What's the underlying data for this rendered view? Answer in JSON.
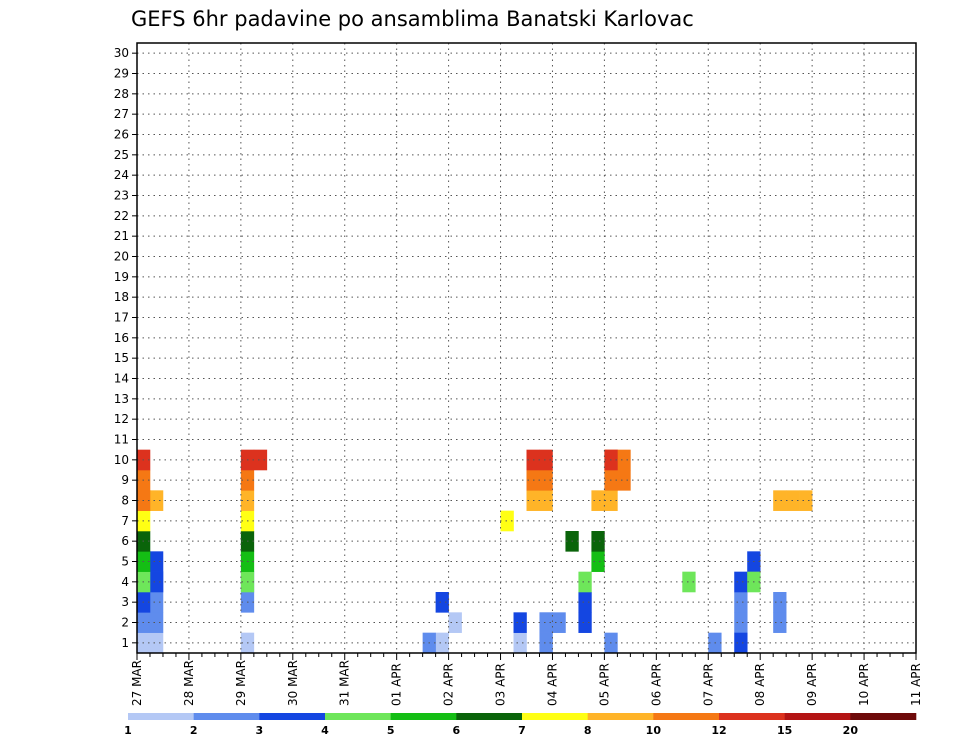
{
  "chart_data": {
    "type": "heatmap",
    "title": "GEFS 6hr padavine po ansamblima Banatski Karlovac",
    "xlabel": "",
    "ylabel": "",
    "x_tick_labels": [
      "27 MAR",
      "28 MAR",
      "29 MAR",
      "30 MAR",
      "31 MAR",
      "01 APR",
      "02 APR",
      "03 APR",
      "04 APR",
      "05 APR",
      "06 APR",
      "07 APR",
      "08 APR",
      "09 APR",
      "10 APR",
      "11 APR"
    ],
    "y_tick_labels": [
      "1",
      "2",
      "3",
      "4",
      "5",
      "6",
      "7",
      "8",
      "9",
      "10",
      "11",
      "12",
      "13",
      "14",
      "15",
      "16",
      "17",
      "18",
      "19",
      "20",
      "21",
      "22",
      "23",
      "24",
      "25",
      "26",
      "27",
      "28",
      "29",
      "30"
    ],
    "x_unit": "6-hour step (4 per day)",
    "xlim": [
      0,
      60
    ],
    "ylim": [
      0,
      30
    ],
    "grid": true,
    "legend_position": "bottom",
    "levels": [
      "1",
      "2",
      "3",
      "4",
      "5",
      "6",
      "7",
      "8",
      "10",
      "12",
      "15",
      "20"
    ],
    "level_colors": [
      "#b4c8f5",
      "#5f8ced",
      "#1446e1",
      "#6ee65a",
      "#14be14",
      "#0a640a",
      "#ffff14",
      "#ffb428",
      "#f57814",
      "#dc321e",
      "#b41414",
      "#6e0a0a"
    ],
    "series": [
      {
        "name": "1",
        "cells": [
          [
            0,
            0
          ],
          [
            0,
            1
          ],
          [
            1,
            0
          ],
          [
            8,
            0
          ],
          [
            23,
            0
          ],
          [
            24,
            1
          ],
          [
            29,
            0
          ],
          [
            31,
            0
          ],
          [
            31,
            1
          ]
        ]
      },
      {
        "name": "2",
        "cells": [
          [
            0,
            1
          ],
          [
            1,
            1
          ],
          [
            1,
            2
          ],
          [
            1,
            3
          ],
          [
            0,
            2
          ],
          [
            8,
            2
          ],
          [
            8,
            3
          ],
          [
            22,
            0
          ],
          [
            31,
            0
          ],
          [
            31,
            1
          ],
          [
            32,
            1
          ],
          [
            36,
            0
          ],
          [
            44,
            0
          ],
          [
            46,
            1
          ],
          [
            46,
            2
          ],
          [
            49,
            1
          ],
          [
            49,
            2
          ]
        ]
      },
      {
        "name": "3",
        "cells": [
          [
            0,
            2
          ],
          [
            1,
            3
          ],
          [
            1,
            4
          ],
          [
            23,
            2
          ],
          [
            29,
            1
          ],
          [
            34,
            2
          ],
          [
            34,
            1
          ],
          [
            46,
            0
          ],
          [
            46,
            3
          ],
          [
            47,
            4
          ]
        ]
      },
      {
        "name": "4",
        "cells": [
          [
            0,
            3
          ],
          [
            8,
            3
          ],
          [
            34,
            3
          ],
          [
            42,
            3
          ],
          [
            47,
            3
          ]
        ]
      },
      {
        "name": "5",
        "cells": [
          [
            0,
            4
          ],
          [
            8,
            4
          ],
          [
            35,
            4
          ]
        ]
      },
      {
        "name": "6",
        "cells": [
          [
            0,
            5
          ],
          [
            8,
            5
          ],
          [
            33,
            5
          ],
          [
            35,
            5
          ]
        ]
      },
      {
        "name": "7",
        "cells": [
          [
            0,
            6
          ],
          [
            8,
            6
          ],
          [
            28,
            6
          ]
        ]
      },
      {
        "name": "8",
        "cells": [
          [
            0,
            7
          ],
          [
            1,
            7
          ],
          [
            8,
            7
          ],
          [
            30,
            7
          ],
          [
            31,
            7
          ],
          [
            35,
            7
          ],
          [
            36,
            7
          ],
          [
            49,
            7
          ],
          [
            50,
            7
          ],
          [
            51,
            7
          ]
        ]
      },
      {
        "name": "9",
        "cells": [
          [
            0,
            8
          ],
          [
            0,
            7
          ],
          [
            8,
            8
          ],
          [
            30,
            8
          ],
          [
            31,
            8
          ],
          [
            36,
            8
          ],
          [
            37,
            8
          ],
          [
            37,
            9
          ],
          [
            36,
            9
          ]
        ]
      },
      {
        "name": "10",
        "cells": [
          [
            0,
            9
          ],
          [
            8,
            9
          ],
          [
            9,
            9
          ],
          [
            30,
            9
          ],
          [
            31,
            9
          ],
          [
            36,
            9
          ]
        ]
      }
    ],
    "annotations": []
  }
}
